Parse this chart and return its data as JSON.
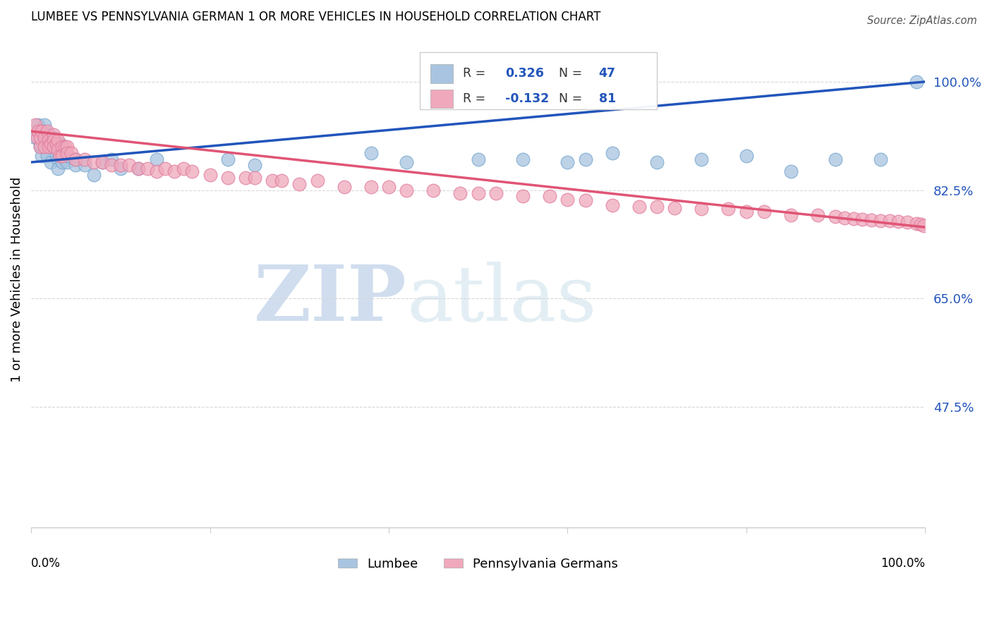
{
  "title": "LUMBEE VS PENNSYLVANIA GERMAN 1 OR MORE VEHICLES IN HOUSEHOLD CORRELATION CHART",
  "source": "Source: ZipAtlas.com",
  "ylabel": "1 or more Vehicles in Household",
  "watermark_zip": "ZIP",
  "watermark_atlas": "atlas",
  "lumbee_R": 0.326,
  "lumbee_N": 47,
  "pg_R": -0.132,
  "pg_N": 81,
  "lumbee_color": "#a8c4e0",
  "lumbee_edge_color": "#7aaad0",
  "pg_color": "#f0a8bc",
  "pg_edge_color": "#e080a0",
  "lumbee_line_color": "#2255bb",
  "pg_line_color": "#e05575",
  "ytick_labels": [
    "100.0%",
    "82.5%",
    "65.0%",
    "47.5%"
  ],
  "ytick_values": [
    1.0,
    0.825,
    0.65,
    0.475
  ],
  "xlim": [
    0.0,
    1.0
  ],
  "ylim": [
    0.28,
    1.08
  ],
  "lumbee_x": [
    0.005,
    0.008,
    0.01,
    0.01,
    0.012,
    0.015,
    0.015,
    0.018,
    0.02,
    0.02,
    0.022,
    0.025,
    0.025,
    0.028,
    0.03,
    0.03,
    0.03,
    0.032,
    0.035,
    0.035,
    0.04,
    0.04,
    0.05,
    0.05,
    0.06,
    0.07,
    0.08,
    0.09,
    0.1,
    0.12,
    0.14,
    0.22,
    0.25,
    0.38,
    0.42,
    0.5,
    0.55,
    0.6,
    0.62,
    0.65,
    0.7,
    0.75,
    0.8,
    0.85,
    0.9,
    0.95,
    0.99
  ],
  "lumbee_y": [
    0.91,
    0.93,
    0.895,
    0.9,
    0.88,
    0.905,
    0.93,
    0.88,
    0.915,
    0.895,
    0.87,
    0.91,
    0.895,
    0.88,
    0.895,
    0.875,
    0.86,
    0.9,
    0.885,
    0.87,
    0.87,
    0.88,
    0.875,
    0.865,
    0.865,
    0.85,
    0.87,
    0.875,
    0.86,
    0.86,
    0.875,
    0.875,
    0.865,
    0.885,
    0.87,
    0.875,
    0.875,
    0.87,
    0.875,
    0.885,
    0.87,
    0.875,
    0.88,
    0.855,
    0.875,
    0.875,
    1.0
  ],
  "pg_x": [
    0.005,
    0.007,
    0.008,
    0.01,
    0.01,
    0.012,
    0.015,
    0.015,
    0.018,
    0.02,
    0.02,
    0.022,
    0.025,
    0.025,
    0.025,
    0.028,
    0.03,
    0.03,
    0.032,
    0.035,
    0.035,
    0.038,
    0.04,
    0.04,
    0.045,
    0.05,
    0.06,
    0.07,
    0.08,
    0.09,
    0.1,
    0.11,
    0.12,
    0.13,
    0.14,
    0.15,
    0.16,
    0.17,
    0.18,
    0.2,
    0.22,
    0.24,
    0.25,
    0.27,
    0.28,
    0.3,
    0.32,
    0.35,
    0.38,
    0.4,
    0.42,
    0.45,
    0.48,
    0.5,
    0.52,
    0.55,
    0.58,
    0.6,
    0.62,
    0.65,
    0.68,
    0.7,
    0.72,
    0.75,
    0.78,
    0.8,
    0.82,
    0.85,
    0.88,
    0.9,
    0.91,
    0.92,
    0.93,
    0.94,
    0.95,
    0.96,
    0.97,
    0.98,
    0.99,
    0.995,
    0.998
  ],
  "pg_y": [
    0.93,
    0.91,
    0.92,
    0.895,
    0.91,
    0.92,
    0.91,
    0.895,
    0.92,
    0.905,
    0.895,
    0.9,
    0.915,
    0.905,
    0.895,
    0.9,
    0.905,
    0.89,
    0.88,
    0.895,
    0.88,
    0.895,
    0.895,
    0.885,
    0.885,
    0.875,
    0.875,
    0.87,
    0.87,
    0.865,
    0.865,
    0.865,
    0.86,
    0.86,
    0.855,
    0.86,
    0.855,
    0.86,
    0.855,
    0.85,
    0.845,
    0.845,
    0.845,
    0.84,
    0.84,
    0.835,
    0.84,
    0.83,
    0.83,
    0.83,
    0.825,
    0.825,
    0.82,
    0.82,
    0.82,
    0.815,
    0.815,
    0.81,
    0.808,
    0.8,
    0.798,
    0.798,
    0.796,
    0.795,
    0.795,
    0.79,
    0.79,
    0.785,
    0.785,
    0.782,
    0.78,
    0.779,
    0.778,
    0.777,
    0.776,
    0.775,
    0.774,
    0.773,
    0.771,
    0.77,
    0.768
  ]
}
